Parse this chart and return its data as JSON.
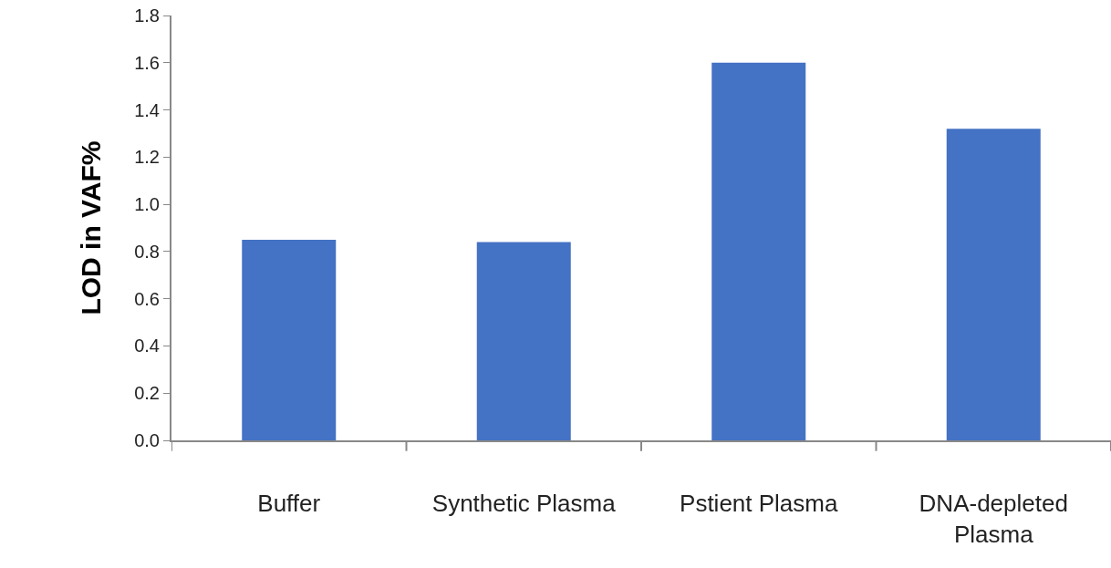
{
  "chart_data": {
    "type": "bar",
    "ylabel": "LOD in VAF%",
    "categories": [
      "Buffer",
      "Synthetic Plasma",
      "Pstient Plasma",
      "DNA-depleted Plasma"
    ],
    "values": [
      0.85,
      0.84,
      1.6,
      1.32
    ],
    "color": "#4472c4",
    "ylim": [
      0,
      1.8
    ],
    "yticks": [
      {
        "value": 0,
        "label": "0.0"
      },
      {
        "value": 0.2,
        "label": "0.2"
      },
      {
        "value": 0.4,
        "label": "0.4"
      },
      {
        "value": 0.6,
        "label": "0.6"
      },
      {
        "value": 0.8,
        "label": "0.8"
      },
      {
        "value": 1,
        "label": "1.0"
      },
      {
        "value": 1.2,
        "label": "1.2"
      },
      {
        "value": 1.4,
        "label": "1.4"
      },
      {
        "value": 1.6,
        "label": "1.6"
      },
      {
        "value": 1.8,
        "label": "1.8"
      }
    ],
    "grid": false
  }
}
